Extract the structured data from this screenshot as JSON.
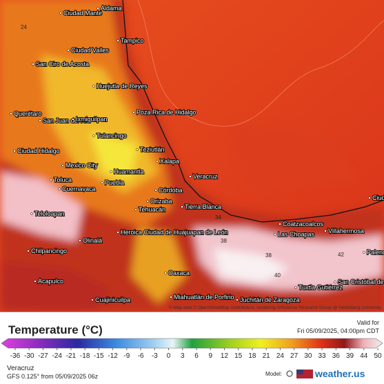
{
  "map": {
    "labels": [
      "Ciudad Mante",
      "Aldama",
      "Tampico",
      "Ciudad Valles",
      "San Ciro de Acosta",
      "Huejutla de Reyes",
      "Poza Rica de Hidalgo",
      "Querétaro",
      "San Juan del Río",
      "Ixmiquilpan",
      "Tulancingo",
      "Teziutlán",
      "Ciudad Hidalgo",
      "Xalapa",
      "Mexico City",
      "Huamantla",
      "Toluca",
      "Puebla",
      "Cuernavaca",
      "Córdoba",
      "Orizaba",
      "Veracruz",
      "Tierra Blanca",
      "Tehuacán",
      "Teloloapan",
      "Heroica Ciudad de Huajuapan de León",
      "Olinalá",
      "Chilpancingo",
      "Coatzacoalcos",
      "Las Choapas",
      "Villahermosa",
      "Ciudad del Carmen",
      "Palenque",
      "Oaxaca",
      "Acapulco",
      "Tuxtla Gutiérrez",
      "San Cristóbal de las Casas",
      "Cuajinicuilpa",
      "Miahuatlán de Porfirio",
      "Juchitán de Zaragoza"
    ],
    "contours": [
      "24",
      "34",
      "38",
      "38",
      "40",
      "42"
    ],
    "credit": "© Map data © OpenStreetMap contributors, rendering GIScience Research Group @ Heidelberg University"
  },
  "legend": {
    "title": "Temperature (°C)",
    "ticks": [
      -36,
      -30,
      -27,
      -24,
      -21,
      -18,
      -15,
      -12,
      -9,
      -6,
      -3,
      0,
      3,
      6,
      9,
      12,
      15,
      18,
      21,
      24,
      27,
      30,
      33,
      36,
      39,
      44,
      50
    ]
  },
  "valid": {
    "label": "Valid for",
    "time": "Fri 05/09/2025, 04:00pm CDT"
  },
  "footer": {
    "location": "Veracruz",
    "model": "GFS 0.125° from 05/09/2025 06z",
    "model_label": "Model:",
    "brand": "weather.us"
  }
}
